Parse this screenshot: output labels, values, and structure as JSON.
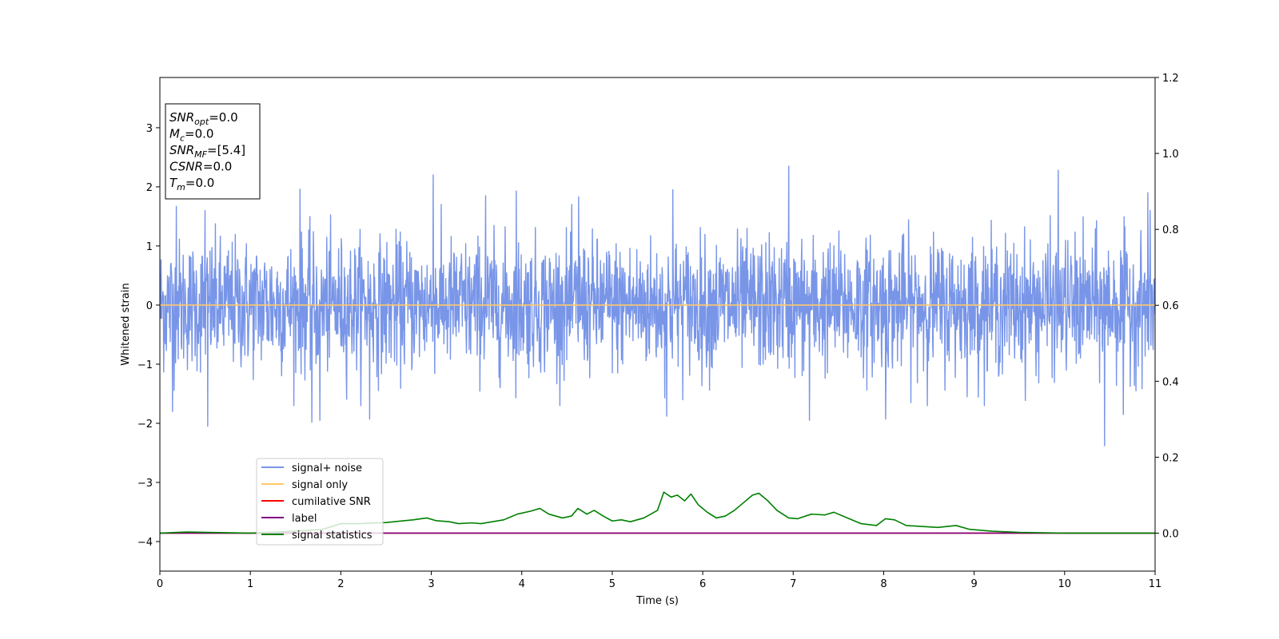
{
  "chart_data": {
    "type": "line",
    "xlabel": "Time (s)",
    "ylabel": "Whitened strain",
    "xlim": [
      0,
      11
    ],
    "ylim": [
      -4.5,
      3.85
    ],
    "y2lim": [
      -0.1,
      1.2
    ],
    "x_ticks": [
      "0",
      "1",
      "2",
      "3",
      "4",
      "5",
      "6",
      "7",
      "8",
      "9",
      "10",
      "11"
    ],
    "y_ticks": [
      "−4",
      "−3",
      "−2",
      "−1",
      "0",
      "1",
      "2",
      "3"
    ],
    "y2_ticks": [
      "0.0",
      "0.2",
      "0.4",
      "0.6",
      "0.8",
      "1.0",
      "1.2"
    ],
    "grid": false,
    "legend_placement": "lower-left",
    "info_box": [
      {
        "main": "SNR",
        "sub": "opt",
        "value": "=0.0"
      },
      {
        "main": "M",
        "sub": "c",
        "value": "=0.0"
      },
      {
        "main": "SNR",
        "sub": "MF",
        "value": "=[5.4]"
      },
      {
        "main": "CSNR",
        "sub": "",
        "value": "=0.0"
      },
      {
        "main": "T",
        "sub": "m",
        "value": "=0.0"
      }
    ],
    "series": [
      {
        "name": "signal+ noise",
        "color": "#7895e8",
        "axis": "left",
        "noise_std": 0.55,
        "peaks": [
          {
            "x": 0.18,
            "y": 1.67
          },
          {
            "x": 0.5,
            "y": 1.6
          },
          {
            "x": 0.53,
            "y": -2.05
          },
          {
            "x": 0.14,
            "y": -1.8
          },
          {
            "x": 1.55,
            "y": 1.96
          },
          {
            "x": 1.68,
            "y": -1.98
          },
          {
            "x": 1.77,
            "y": -1.95
          },
          {
            "x": 2.32,
            "y": -1.93
          },
          {
            "x": 3.02,
            "y": 2.2
          },
          {
            "x": 3.6,
            "y": 1.85
          },
          {
            "x": 3.94,
            "y": 1.93
          },
          {
            "x": 4.63,
            "y": 1.83
          },
          {
            "x": 5.67,
            "y": 1.95
          },
          {
            "x": 5.6,
            "y": -1.88
          },
          {
            "x": 6.95,
            "y": 2.35
          },
          {
            "x": 7.18,
            "y": -1.95
          },
          {
            "x": 8.02,
            "y": -1.93
          },
          {
            "x": 9.93,
            "y": 2.28
          },
          {
            "x": 10.44,
            "y": -2.38
          },
          {
            "x": 10.65,
            "y": -1.85
          },
          {
            "x": 10.92,
            "y": 1.9
          }
        ]
      },
      {
        "name": "signal only",
        "color": "#ffc869",
        "axis": "left",
        "x": [
          0,
          11
        ],
        "y": [
          0,
          0
        ]
      },
      {
        "name": "cumilative SNR",
        "color": "#ff0000",
        "axis": "right",
        "x": [
          0,
          11
        ],
        "y": [
          0,
          0
        ]
      },
      {
        "name": "label",
        "color": "#800080",
        "axis": "right",
        "x": [
          0,
          11
        ],
        "y": [
          0,
          0
        ]
      },
      {
        "name": "signal statistics",
        "color": "#008000",
        "axis": "right",
        "x": [
          0,
          0.3,
          1.0,
          1.5,
          1.8,
          2.0,
          2.2,
          2.5,
          2.8,
          2.95,
          3.05,
          3.2,
          3.3,
          3.45,
          3.55,
          3.8,
          3.95,
          4.1,
          4.2,
          4.3,
          4.45,
          4.55,
          4.62,
          4.72,
          4.8,
          4.9,
          5.0,
          5.1,
          5.2,
          5.35,
          5.5,
          5.57,
          5.65,
          5.72,
          5.8,
          5.87,
          5.95,
          6.05,
          6.15,
          6.25,
          6.35,
          6.45,
          6.55,
          6.62,
          6.72,
          6.82,
          6.95,
          7.05,
          7.2,
          7.35,
          7.45,
          7.6,
          7.75,
          7.92,
          8.02,
          8.12,
          8.25,
          8.4,
          8.6,
          8.8,
          8.95,
          9.2,
          9.5,
          10.0,
          11.0
        ],
        "y": [
          0.0,
          0.003,
          0.0,
          0.005,
          0.01,
          0.025,
          0.025,
          0.028,
          0.035,
          0.04,
          0.033,
          0.03,
          0.025,
          0.027,
          0.025,
          0.035,
          0.05,
          0.058,
          0.065,
          0.05,
          0.04,
          0.045,
          0.065,
          0.05,
          0.06,
          0.045,
          0.032,
          0.035,
          0.03,
          0.04,
          0.06,
          0.108,
          0.095,
          0.1,
          0.085,
          0.103,
          0.075,
          0.055,
          0.04,
          0.045,
          0.06,
          0.08,
          0.1,
          0.105,
          0.085,
          0.06,
          0.04,
          0.038,
          0.05,
          0.048,
          0.055,
          0.04,
          0.025,
          0.02,
          0.038,
          0.035,
          0.02,
          0.018,
          0.015,
          0.02,
          0.01,
          0.005,
          0.002,
          0.0,
          0.0
        ]
      }
    ]
  }
}
